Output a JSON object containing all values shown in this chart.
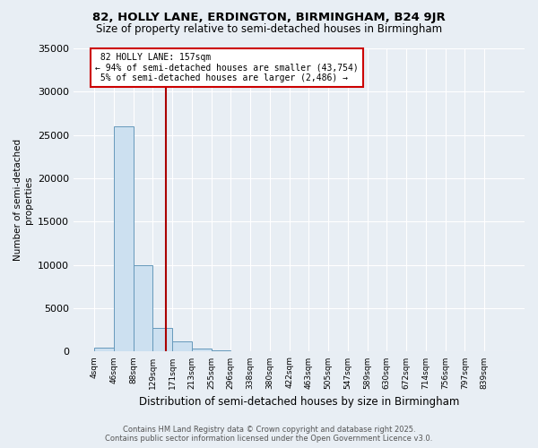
{
  "title": "82, HOLLY LANE, ERDINGTON, BIRMINGHAM, B24 9JR",
  "subtitle": "Size of property relative to semi-detached houses in Birmingham",
  "xlabel": "Distribution of semi-detached houses by size in Birmingham",
  "ylabel": "Number of semi-detached\nproperties",
  "bins": [
    "4sqm",
    "46sqm",
    "88sqm",
    "129sqm",
    "171sqm",
    "213sqm",
    "255sqm",
    "296sqm",
    "338sqm",
    "380sqm",
    "422sqm",
    "463sqm",
    "505sqm",
    "547sqm",
    "589sqm",
    "630sqm",
    "672sqm",
    "714sqm",
    "756sqm",
    "797sqm",
    "839sqm"
  ],
  "bin_edges": [
    4,
    46,
    88,
    129,
    171,
    213,
    255,
    296,
    338,
    380,
    422,
    463,
    505,
    547,
    589,
    630,
    672,
    714,
    756,
    797,
    839
  ],
  "values": [
    500,
    26000,
    10000,
    2700,
    1200,
    400,
    150,
    60,
    30,
    15,
    10,
    8,
    5,
    3,
    2,
    2,
    1,
    1,
    1,
    1,
    0
  ],
  "bar_color": "#cce0f0",
  "bar_edge_color": "#6699bb",
  "property_size": 157,
  "property_label": "82 HOLLY LANE: 157sqm",
  "pct_smaller": 94,
  "count_smaller": 43754,
  "pct_larger": 5,
  "count_larger": 2486,
  "vline_color": "#aa0000",
  "annotation_box_color": "#cc0000",
  "bg_color": "#e8eef4",
  "plot_bg_color": "#e8eef4",
  "grid_color": "#ffffff",
  "ylim": [
    0,
    35000
  ],
  "yticks": [
    0,
    5000,
    10000,
    15000,
    20000,
    25000,
    30000,
    35000
  ],
  "footer1": "Contains HM Land Registry data © Crown copyright and database right 2025.",
  "footer2": "Contains public sector information licensed under the Open Government Licence v3.0."
}
